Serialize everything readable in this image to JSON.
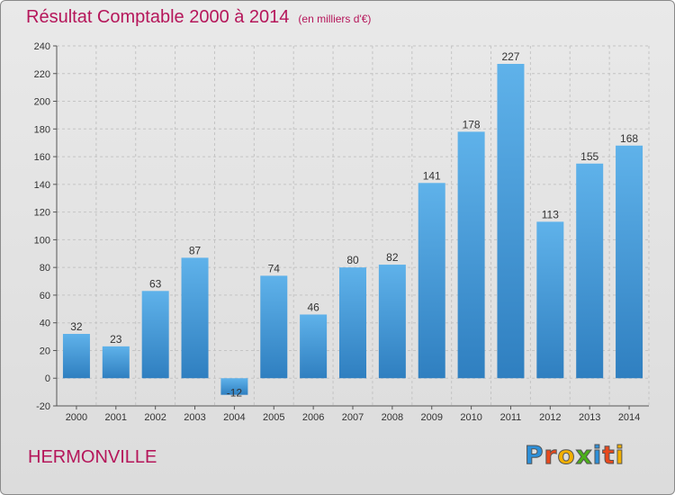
{
  "chart_data": {
    "type": "bar",
    "title": "Résultat Comptable 2000 à 2014",
    "subtitle": "(en milliers d'€)",
    "categories": [
      "2000",
      "2001",
      "2002",
      "2003",
      "2004",
      "2005",
      "2006",
      "2007",
      "2008",
      "2009",
      "2010",
      "2011",
      "2012",
      "2013",
      "2014"
    ],
    "values": [
      32,
      23,
      63,
      87,
      -12,
      74,
      46,
      80,
      82,
      141,
      178,
      227,
      113,
      155,
      168
    ],
    "ylim": [
      -20,
      240
    ],
    "yticks": [
      -20,
      0,
      20,
      40,
      60,
      80,
      100,
      120,
      140,
      160,
      180,
      200,
      220,
      240
    ],
    "grid": true,
    "bar_color_light": "#5fb2ea",
    "bar_color_dark": "#2f7fc0"
  },
  "footer": {
    "commune": "HERMONVILLE",
    "logo_letters": [
      {
        "ch": "P",
        "color": "#2d8fd8"
      },
      {
        "ch": "r",
        "color": "#e8491d"
      },
      {
        "ch": "o",
        "color": "#f3b000"
      },
      {
        "ch": "x",
        "color": "#4caf1a"
      },
      {
        "ch": "i",
        "color": "#2d8fd8"
      },
      {
        "ch": "t",
        "color": "#e8491d"
      },
      {
        "ch": "i",
        "color": "#f3b000"
      }
    ]
  },
  "colors": {
    "title": "#b5165a"
  }
}
